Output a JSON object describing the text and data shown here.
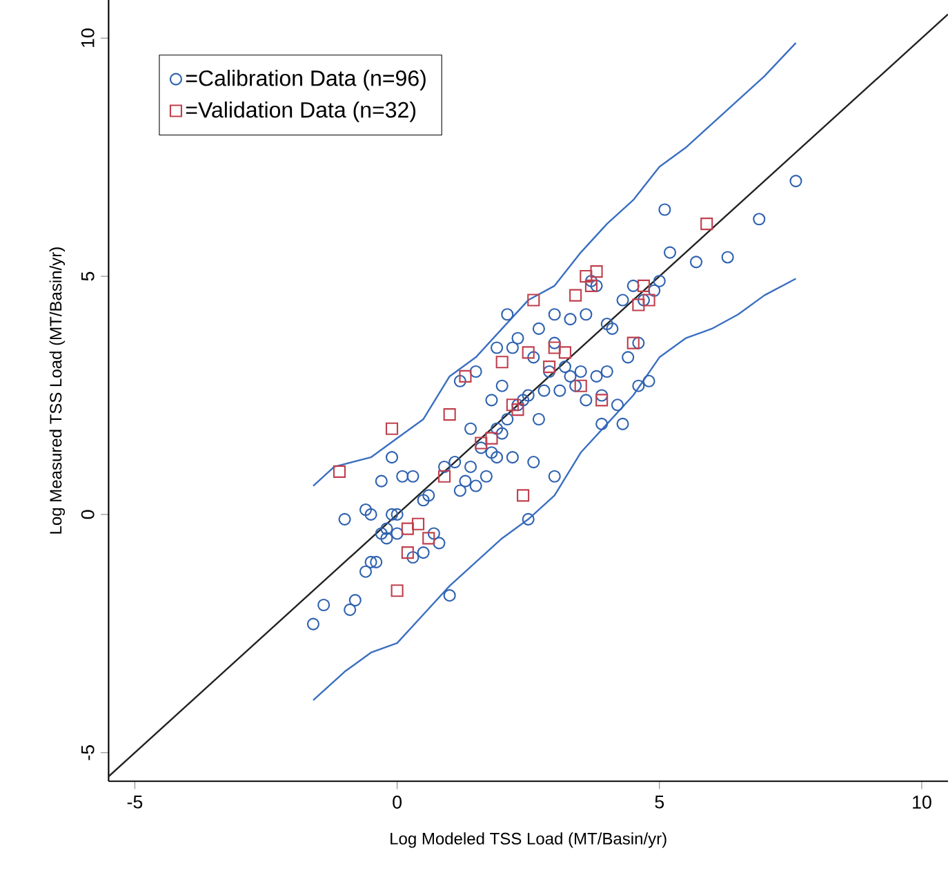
{
  "chart_data": {
    "type": "scatter",
    "xlabel": "Log Modeled TSS Load (MT/Basin/yr)",
    "ylabel": "Log Measured TSS Load (MT/Basin/yr)",
    "xlim": [
      -5.5,
      10.5
    ],
    "ylim": [
      -5.6,
      10.8
    ],
    "xticks": [
      -5,
      0,
      5,
      10
    ],
    "yticks": [
      -5,
      0,
      5,
      10
    ],
    "grid": false,
    "legend": "top left",
    "series": [
      {
        "name": "=Calibration Data (n=96)",
        "marker": "circle",
        "color": "#2f62b0",
        "x": [
          -1.6,
          -1.4,
          -0.9,
          -0.8,
          -0.6,
          -0.5,
          -0.4,
          -0.3,
          -0.2,
          -0.1,
          0.0,
          -0.5,
          -0.6,
          -1.0,
          0.3,
          0.5,
          0.7,
          0.8,
          0.6,
          0.1,
          0.3,
          -0.1,
          -0.3,
          0.9,
          1.0,
          1.2,
          1.3,
          1.4,
          1.1,
          1.5,
          1.6,
          1.7,
          1.8,
          1.9,
          1.9,
          2.0,
          2.1,
          2.2,
          2.3,
          2.4,
          2.5,
          2.2,
          2.3,
          2.5,
          2.6,
          2.7,
          2.8,
          2.9,
          3.0,
          3.0,
          3.1,
          3.2,
          3.3,
          3.4,
          3.5,
          3.6,
          3.7,
          3.8,
          3.6,
          3.8,
          3.9,
          4.0,
          4.1,
          4.2,
          4.3,
          4.4,
          4.5,
          4.6,
          4.7,
          4.8,
          4.9,
          5.0,
          5.1,
          5.2,
          5.7,
          6.3,
          6.9,
          7.6,
          1.5,
          1.2,
          1.9,
          2.1,
          3.9,
          4.3,
          4.6,
          2.6,
          3.3,
          3.0,
          4.0,
          1.8,
          2.7,
          0.5,
          0.0,
          -0.2,
          1.4,
          2.0
        ],
        "values": [
          -2.3,
          -1.9,
          -2.0,
          -1.8,
          -1.2,
          -1.0,
          -1.0,
          -0.4,
          -0.3,
          0.0,
          0.0,
          0.0,
          0.1,
          -0.1,
          -0.9,
          -0.8,
          -0.4,
          -0.6,
          0.4,
          0.8,
          0.8,
          1.2,
          0.7,
          1.0,
          -1.7,
          0.5,
          0.7,
          1.0,
          1.1,
          0.6,
          1.4,
          0.8,
          1.3,
          1.2,
          1.8,
          2.7,
          2.0,
          1.2,
          2.3,
          2.4,
          2.5,
          3.5,
          3.7,
          -0.1,
          1.1,
          2.0,
          2.6,
          3.0,
          0.8,
          3.6,
          2.6,
          3.1,
          2.9,
          2.7,
          3.0,
          4.2,
          4.9,
          4.8,
          2.4,
          2.9,
          2.5,
          3.0,
          3.9,
          2.3,
          4.5,
          3.3,
          4.8,
          3.6,
          4.5,
          2.8,
          4.7,
          4.9,
          6.4,
          5.5,
          5.3,
          5.4,
          6.2,
          7.0,
          3.0,
          2.8,
          3.5,
          4.2,
          1.9,
          1.9,
          2.7,
          3.3,
          4.1,
          4.2,
          4.0,
          2.4,
          3.9,
          0.3,
          -0.4,
          -0.5,
          1.8,
          1.7
        ]
      },
      {
        "name": "=Validation Data (n=32)",
        "marker": "square",
        "color": "#c0404e",
        "x": [
          -1.1,
          -0.1,
          0.2,
          0.2,
          0.0,
          0.4,
          0.6,
          0.9,
          1.0,
          1.3,
          1.8,
          2.0,
          2.3,
          2.4,
          2.5,
          2.6,
          2.9,
          3.2,
          3.4,
          3.5,
          3.6,
          3.7,
          3.8,
          3.9,
          4.7,
          4.8,
          4.6,
          4.5,
          5.9,
          2.2,
          1.6,
          3.0
        ],
        "values": [
          0.9,
          1.8,
          -0.8,
          -0.3,
          -1.6,
          -0.2,
          -0.5,
          0.8,
          2.1,
          2.9,
          1.6,
          3.2,
          2.2,
          0.4,
          3.4,
          4.5,
          3.1,
          3.4,
          4.6,
          2.7,
          5.0,
          4.8,
          5.1,
          2.4,
          4.8,
          4.5,
          4.4,
          3.6,
          6.1,
          2.3,
          1.5,
          3.5
        ]
      },
      {
        "type": "line",
        "color": "#3a6fc0",
        "x": [
          -1.6,
          -1.2,
          -0.5,
          0.0,
          0.5,
          1.0,
          1.5,
          2.0,
          2.5,
          3.0,
          3.5,
          4.0,
          4.5,
          5.0,
          5.5,
          6.0,
          6.5,
          7.0,
          7.6
        ],
        "values": [
          0.6,
          1.0,
          1.2,
          1.6,
          2.0,
          2.9,
          3.3,
          3.9,
          4.5,
          4.8,
          5.5,
          6.1,
          6.6,
          7.3,
          7.7,
          8.2,
          8.7,
          9.2,
          9.9
        ]
      },
      {
        "type": "line",
        "color": "#3a6fc0",
        "x": [
          -1.6,
          -1.0,
          -0.5,
          0.0,
          0.5,
          1.0,
          1.5,
          2.0,
          2.5,
          3.0,
          3.5,
          4.0,
          4.5,
          5.0,
          5.5,
          6.0,
          6.5,
          7.0,
          7.6
        ],
        "values": [
          -3.9,
          -3.3,
          -2.9,
          -2.7,
          -2.1,
          -1.5,
          -1.0,
          -0.5,
          -0.1,
          0.4,
          1.3,
          1.9,
          2.5,
          3.3,
          3.7,
          3.9,
          4.2,
          4.6,
          4.95
        ]
      },
      {
        "type": "line",
        "color": "#222222",
        "x": [
          -5.5,
          10.5
        ],
        "values": [
          -5.5,
          10.5
        ]
      }
    ]
  }
}
